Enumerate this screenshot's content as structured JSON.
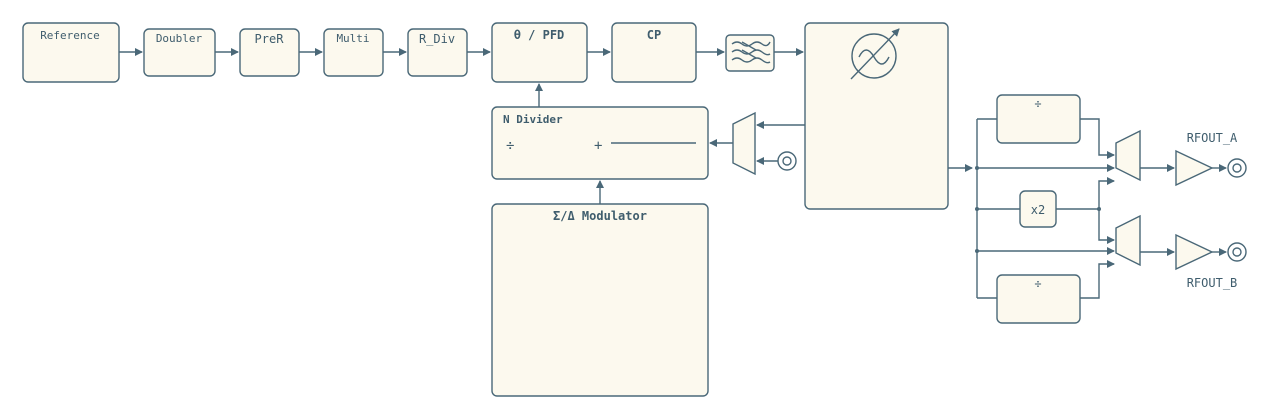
{
  "colors": {
    "stroke": "#4a6878",
    "block_fill": "#fcf9ee",
    "text": "#3f5d6d"
  },
  "blocks": {
    "reference": "Reference",
    "doubler": "Doubler",
    "prer": "PreR",
    "multi": "Multi",
    "rdiv": "R_Div",
    "pfd": "θ / PFD",
    "cp": "CP",
    "ndivider": "N Divider",
    "ndivider_div": "÷",
    "ndivider_plus": "+",
    "modulator": "Σ/Δ Modulator",
    "div_top": "÷",
    "x2": "x2",
    "div_bottom": "÷"
  },
  "outputs": {
    "a": "RFOUT_A",
    "b": "RFOUT_B"
  },
  "icons": {
    "filter": "loop-filter-icon",
    "vco": "vco-icon",
    "mux": "mux-icon",
    "amp": "amplifier-icon",
    "port": "port-icon"
  }
}
